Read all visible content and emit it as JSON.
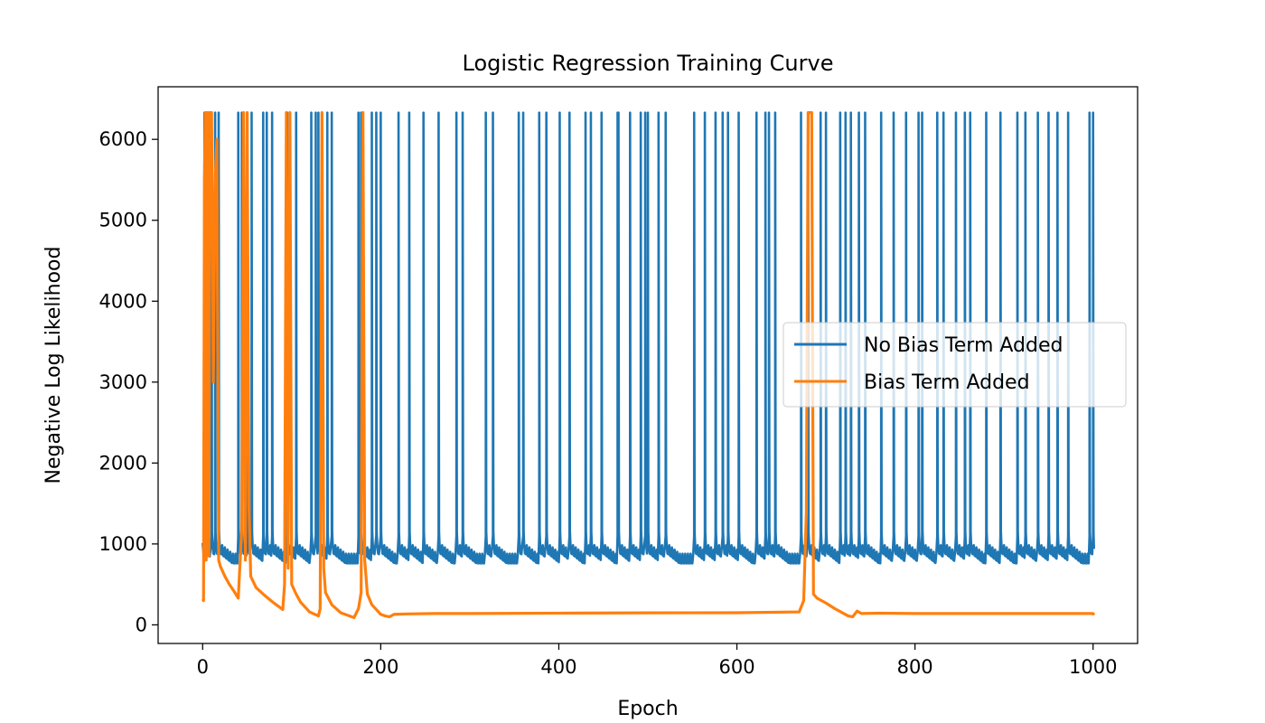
{
  "colors": {
    "no_bias": "#1f77b4",
    "bias": "#ff7f0e",
    "axes": "#000000",
    "legend_border": "#cccccc",
    "background": "#ffffff"
  },
  "chart_data": {
    "type": "line",
    "title": "Logistic Regression Training Curve",
    "xlabel": "Epoch",
    "ylabel": "Negative Log Likelihood",
    "xlim": [
      -50,
      1050
    ],
    "ylim": [
      -230,
      6650
    ],
    "xticks": [
      0,
      200,
      400,
      600,
      800,
      1000
    ],
    "yticks": [
      0,
      1000,
      2000,
      3000,
      4000,
      5000,
      6000
    ],
    "xtick_labels": [
      "0",
      "200",
      "400",
      "600",
      "800",
      "1000"
    ],
    "ytick_labels": [
      "0",
      "1000",
      "2000",
      "3000",
      "4000",
      "5000",
      "6000"
    ],
    "grid": false,
    "legend_position": "center-right",
    "series": [
      {
        "name": "No Bias Term Added",
        "color_key": "no_bias",
        "baseline": 900,
        "peak": 6330,
        "spike_epochs": [
          2,
          10,
          14,
          18,
          40,
          44,
          50,
          55,
          68,
          72,
          78,
          95,
          105,
          122,
          127,
          130,
          140,
          145,
          175,
          178,
          190,
          195,
          200,
          220,
          232,
          248,
          265,
          285,
          292,
          318,
          326,
          355,
          360,
          378,
          386,
          401,
          412,
          430,
          436,
          448,
          466,
          467,
          480,
          492,
          497,
          500,
          512,
          520,
          552,
          564,
          576,
          584,
          590,
          602,
          622,
          632,
          636,
          643,
          672,
          680,
          694,
          700,
          716,
          722,
          728,
          737,
          744,
          762,
          776,
          790,
          804,
          808,
          825,
          832,
          846,
          856,
          862,
          880,
          896,
          915,
          924,
          938,
          950,
          960,
          972,
          996,
          1000
        ],
        "decay_minimum": 760,
        "final_value": 940
      },
      {
        "name": "Bias Term Added",
        "color_key": "bias",
        "points": [
          [
            0,
            320
          ],
          [
            1,
            300
          ],
          [
            2,
            5500
          ],
          [
            3,
            6330
          ],
          [
            4,
            800
          ],
          [
            5,
            6330
          ],
          [
            6,
            6330
          ],
          [
            7,
            850
          ],
          [
            8,
            6330
          ],
          [
            9,
            6330
          ],
          [
            10,
            6330
          ],
          [
            12,
            3000
          ],
          [
            14,
            5500
          ],
          [
            16,
            6000
          ],
          [
            18,
            800
          ],
          [
            20,
            720
          ],
          [
            25,
            600
          ],
          [
            30,
            500
          ],
          [
            35,
            420
          ],
          [
            40,
            330
          ],
          [
            44,
            1200
          ],
          [
            46,
            6330
          ],
          [
            48,
            800
          ],
          [
            50,
            6330
          ],
          [
            52,
            1500
          ],
          [
            54,
            600
          ],
          [
            60,
            460
          ],
          [
            70,
            360
          ],
          [
            80,
            270
          ],
          [
            90,
            190
          ],
          [
            92,
            500
          ],
          [
            94,
            6330
          ],
          [
            96,
            700
          ],
          [
            98,
            6330
          ],
          [
            100,
            500
          ],
          [
            105,
            380
          ],
          [
            110,
            280
          ],
          [
            120,
            160
          ],
          [
            130,
            110
          ],
          [
            132,
            200
          ],
          [
            134,
            6330
          ],
          [
            136,
            700
          ],
          [
            138,
            400
          ],
          [
            145,
            250
          ],
          [
            155,
            150
          ],
          [
            170,
            90
          ],
          [
            175,
            200
          ],
          [
            178,
            400
          ],
          [
            180,
            6330
          ],
          [
            182,
            800
          ],
          [
            185,
            380
          ],
          [
            190,
            250
          ],
          [
            200,
            130
          ],
          [
            205,
            110
          ],
          [
            210,
            100
          ],
          [
            215,
            130
          ],
          [
            230,
            135
          ],
          [
            260,
            140
          ],
          [
            300,
            140
          ],
          [
            400,
            145
          ],
          [
            500,
            148
          ],
          [
            600,
            150
          ],
          [
            670,
            160
          ],
          [
            675,
            300
          ],
          [
            678,
            1400
          ],
          [
            680,
            6330
          ],
          [
            684,
            6330
          ],
          [
            686,
            380
          ],
          [
            690,
            330
          ],
          [
            700,
            270
          ],
          [
            710,
            200
          ],
          [
            725,
            110
          ],
          [
            730,
            100
          ],
          [
            735,
            170
          ],
          [
            740,
            140
          ],
          [
            760,
            145
          ],
          [
            800,
            140
          ],
          [
            900,
            140
          ],
          [
            1000,
            140
          ],
          [
            1001,
            120
          ]
        ]
      }
    ]
  }
}
